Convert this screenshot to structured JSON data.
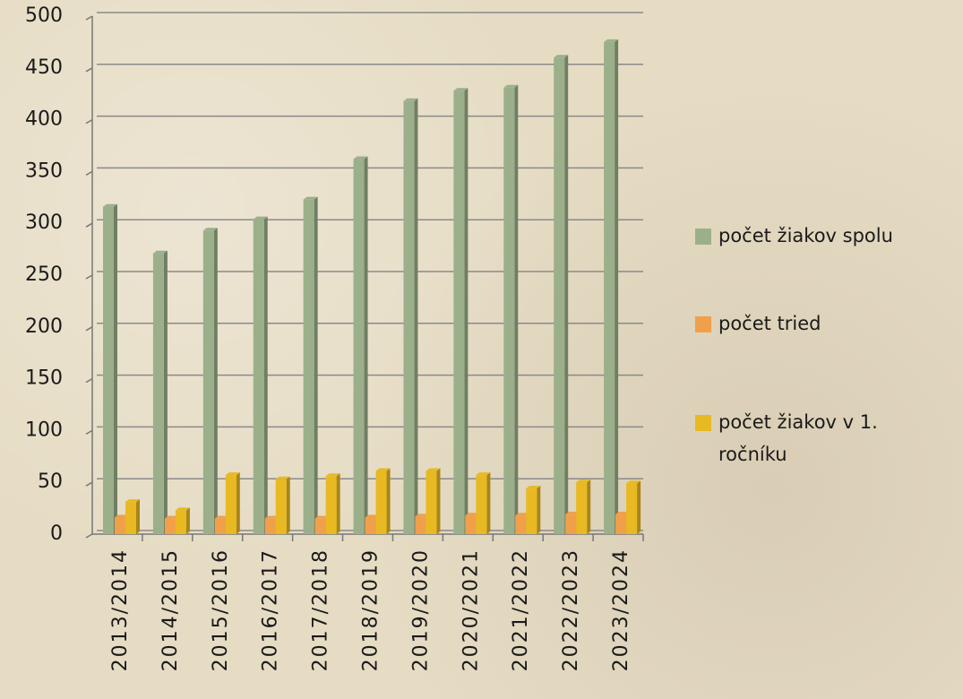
{
  "chart_data": {
    "type": "bar",
    "categories": [
      "2013/2014",
      "2014/2015",
      "2015/2016",
      "2016/2017",
      "2017/2018",
      "2018/2019",
      "2019/2020",
      "2020/2021",
      "2021/2022",
      "2022/2023",
      "2023/2024"
    ],
    "series": [
      {
        "name": "počet žiakov spolu",
        "color": "#9bb08a",
        "values": [
          316,
          271,
          293,
          304,
          323,
          362,
          418,
          428,
          431,
          460,
          475
        ]
      },
      {
        "name": "počet tried",
        "color": "#f0a04b",
        "values": [
          16,
          15,
          15,
          15,
          15,
          16,
          17,
          18,
          18,
          19,
          19
        ]
      },
      {
        "name": "počet žiakov v 1. ročníku",
        "color": "#e8b923",
        "values": [
          31,
          23,
          57,
          53,
          56,
          61,
          61,
          57,
          44,
          50,
          49
        ]
      }
    ],
    "ylim": [
      0,
      500
    ],
    "yticks": [
      0,
      50,
      100,
      150,
      200,
      250,
      300,
      350,
      400,
      450,
      500
    ],
    "grid": true,
    "legend": "right"
  }
}
